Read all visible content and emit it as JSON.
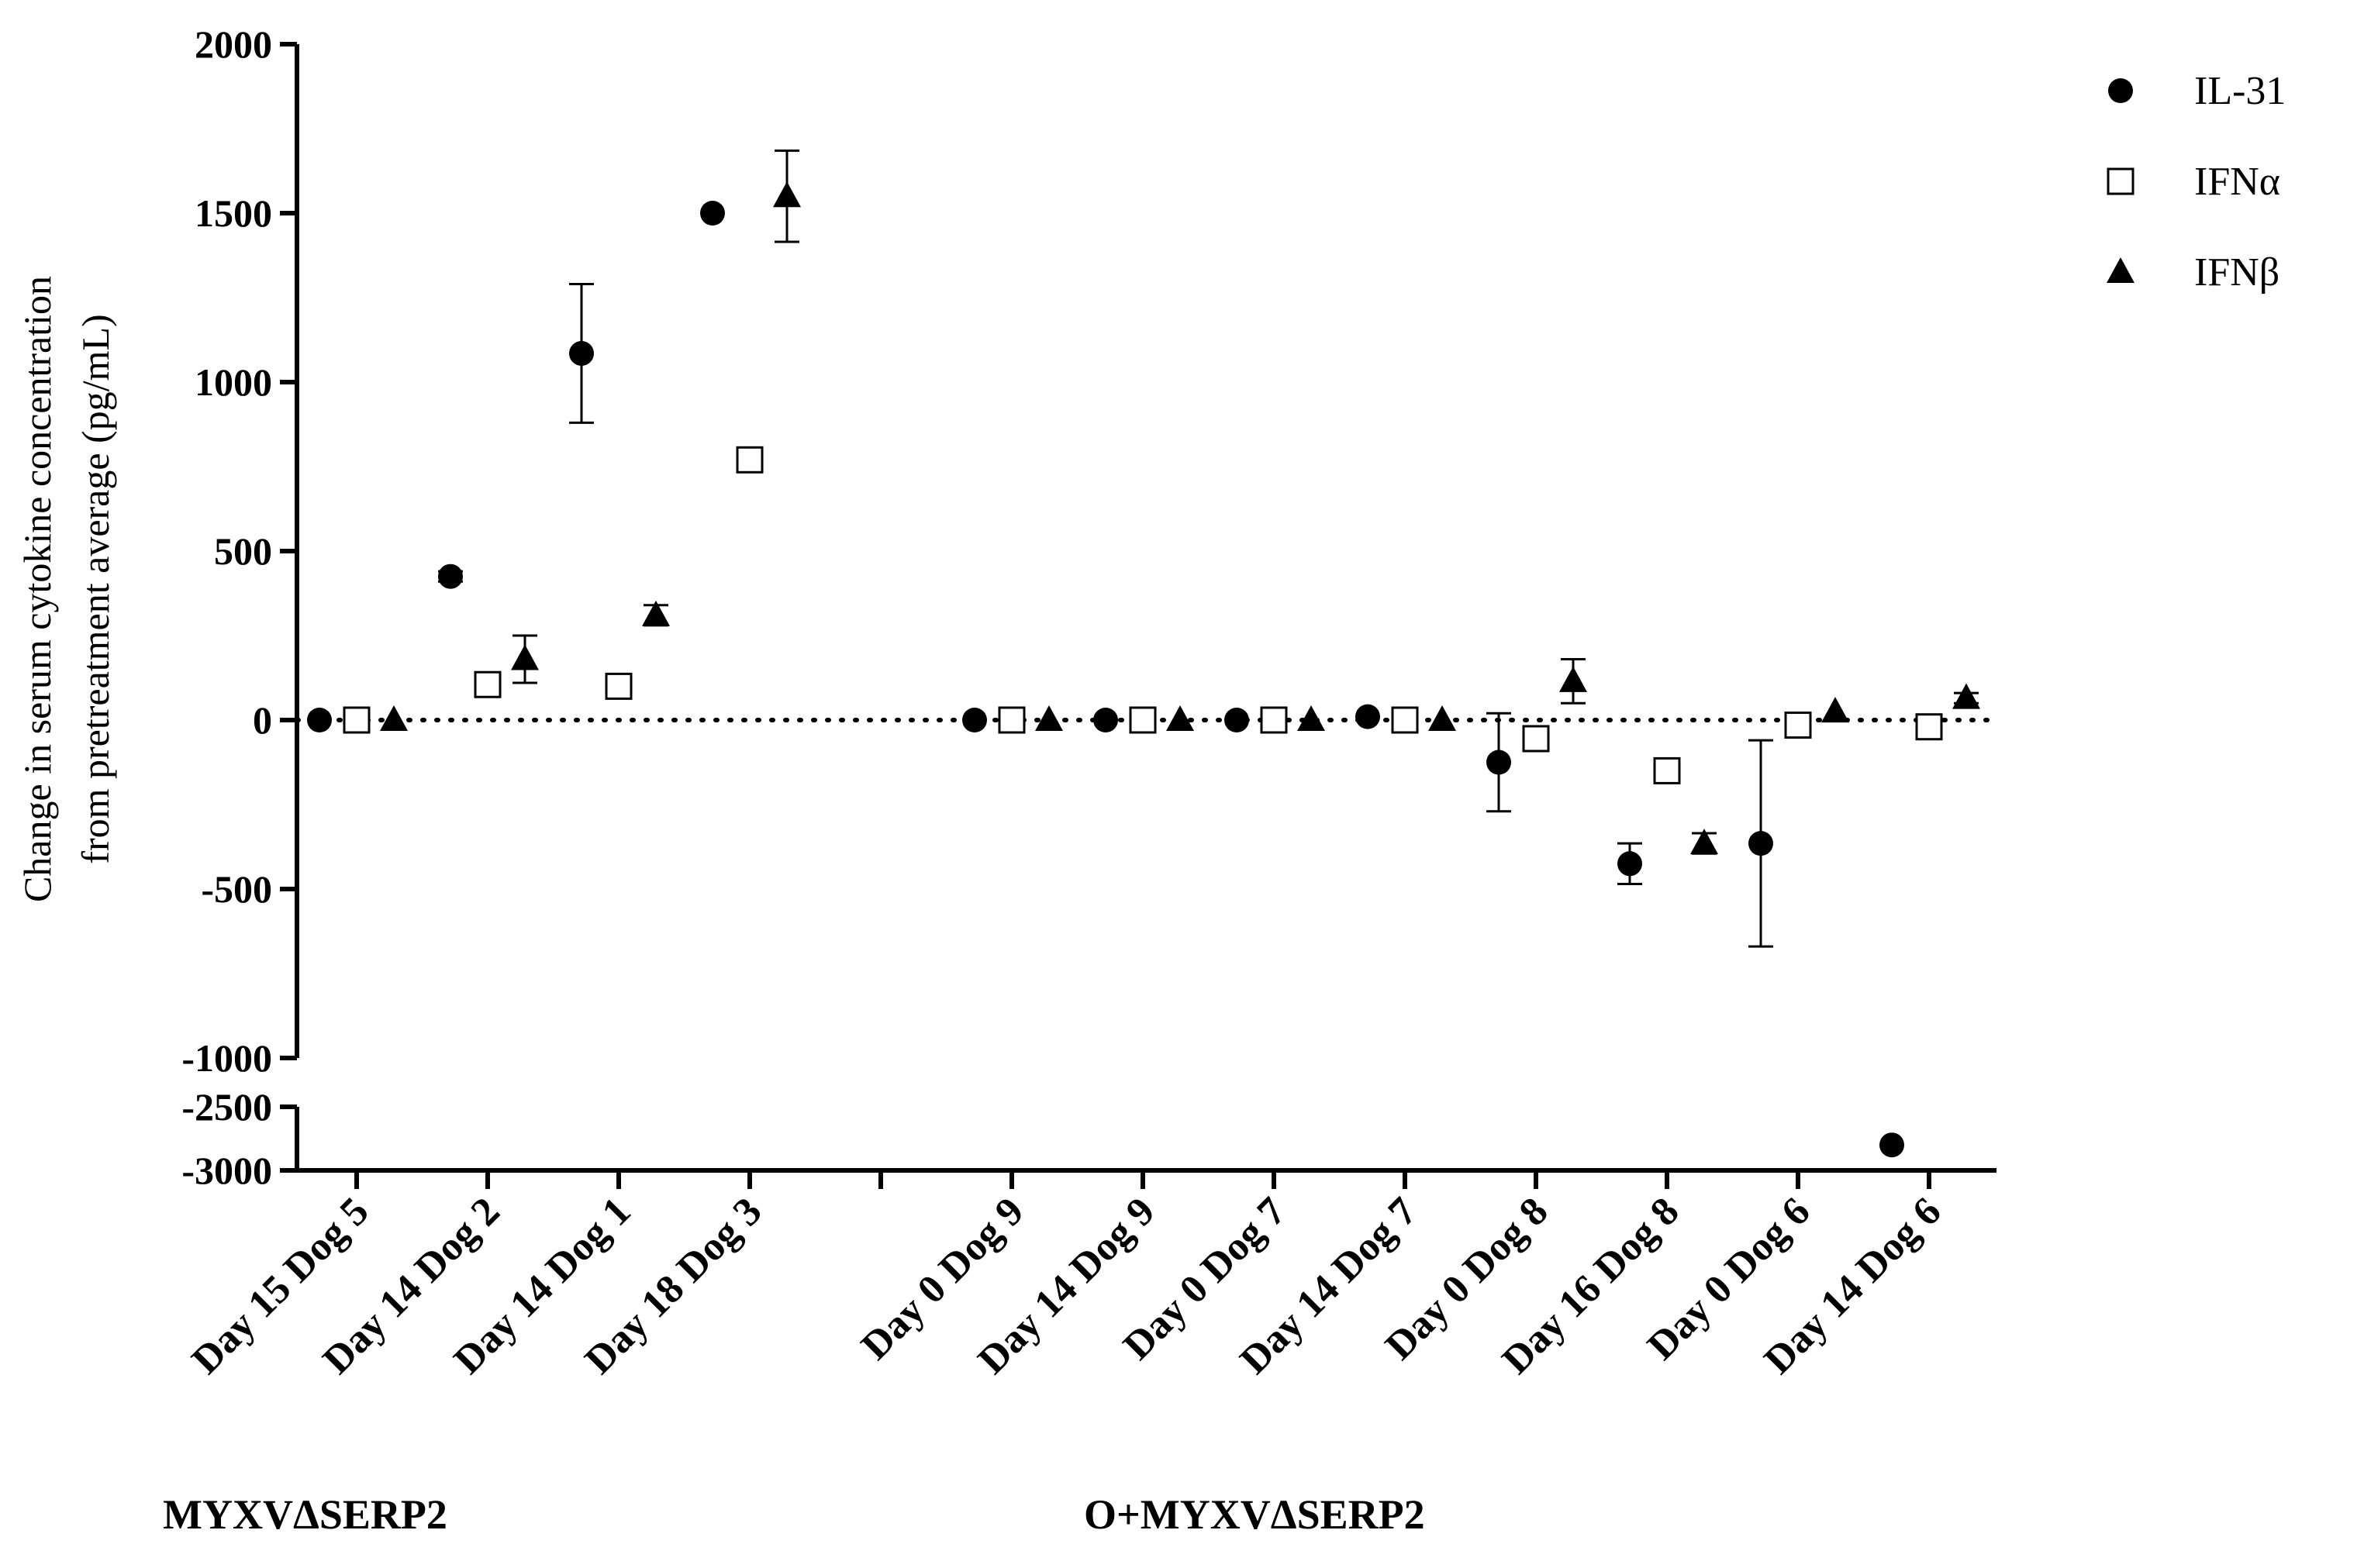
{
  "chart_data": {
    "type": "scatter",
    "ylabel_line1": "Change in serum cytokine concentration",
    "ylabel_line2": "from pretreatment average (pg/mL)",
    "y_upper_segment": {
      "ylim": [
        -1000,
        2000
      ],
      "ticks": [
        2000,
        1500,
        1000,
        500,
        0,
        -500,
        -1000
      ]
    },
    "y_lower_segment": {
      "ylim": [
        -3000,
        -2500
      ],
      "ticks": [
        -2500,
        -3000
      ]
    },
    "reference_line": 0,
    "categories": [
      "Day 15 Dog 5",
      "Day 14 Dog 2",
      "Day 14 Dog 1",
      "Day 18 Dog 3",
      "",
      "Day 0 Dog 9",
      "Day 14 Dog 9",
      "Day 0 Dog 7",
      "Day 14 Dog 7",
      "Day 0 Dog 8",
      "Day 16 Dog 8",
      "Day 0 Dog 6",
      "Day 14 Dog 6"
    ],
    "groups": [
      {
        "label": "MYXVΔSERP2",
        "from": 0,
        "to": 3
      },
      {
        "label": "O+MYXVΔSERP2",
        "from": 5,
        "to": 12
      }
    ],
    "series": [
      {
        "name": "IL-31",
        "marker": "circle",
        "values": [
          0,
          425,
          1085,
          1500,
          null,
          0,
          0,
          0,
          10,
          -125,
          -425,
          -365,
          -2800
        ],
        "err": [
          0,
          15,
          205,
          0,
          null,
          0,
          0,
          0,
          0,
          145,
          60,
          305,
          0
        ]
      },
      {
        "name": "IFNα",
        "marker": "open-square",
        "values": [
          0,
          105,
          100,
          770,
          null,
          0,
          0,
          0,
          0,
          -55,
          -150,
          -15,
          -20
        ],
        "err": [
          0,
          0,
          0,
          0,
          null,
          0,
          0,
          0,
          0,
          30,
          0,
          0,
          0
        ]
      },
      {
        "name": "IFNβ",
        "marker": "triangle",
        "values": [
          0,
          180,
          310,
          1550,
          null,
          0,
          0,
          0,
          0,
          115,
          -365,
          25,
          65
        ],
        "err": [
          0,
          70,
          30,
          135,
          null,
          0,
          0,
          0,
          0,
          65,
          30,
          0,
          15
        ]
      }
    ]
  }
}
